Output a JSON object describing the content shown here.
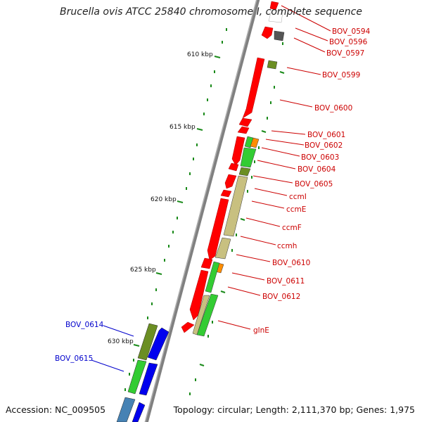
{
  "title": "Brucella ovis ATCC 25840 chromosome I, complete sequence",
  "accession": "Accession: NC_009505",
  "topology": "Topology: circular; Length: 2,111,370 bp; Genes: 1,975",
  "kbp_labels": [
    "610 kbp",
    "615 kbp",
    "620 kbp",
    "625 kbp",
    "630 kbp"
  ],
  "gene_labels": {
    "right": [
      "BOV_0594",
      "BOV_0596",
      "BOV_0597",
      "BOV_0599",
      "BOV_0600",
      "BOV_0601",
      "BOV_0602",
      "BOV_0603",
      "BOV_0604",
      "BOV_0605",
      "ccmI",
      "ccmE",
      "ccmF",
      "ccmh",
      "BOV_0610",
      "BOV_0611",
      "BOV_0612",
      "glnE"
    ],
    "left": [
      "BOV_0614",
      "BOV_0615"
    ]
  },
  "colors": {
    "backbone": "#888888",
    "red_gene": "#ff0000",
    "green_gene": "#33cc33",
    "olive_gene": "#6b8e23",
    "khaki_gene": "#c8c080",
    "orange_gene": "#ff8c00",
    "blue_gene": "#0000ee",
    "steel_gene": "#4682b4",
    "gray_gene": "#555555",
    "tick": "#1a8a1a",
    "right_label": "#cc0000",
    "left_label": "#0000cc"
  }
}
